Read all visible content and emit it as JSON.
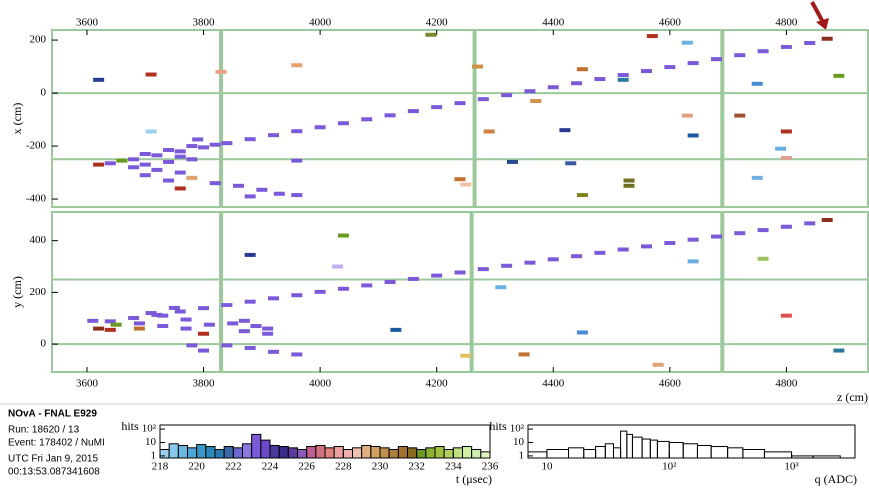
{
  "event_info": {
    "title": "NOvA - FNAL E929",
    "lines": [
      "Run:  18620 / 13",
      "Event: 178402 / NuMI",
      "UTC Fri Jan 9, 2015",
      "00:13:53.087341608"
    ]
  },
  "chart_data": [
    {
      "type": "hits",
      "ylabel": "x (cm)",
      "xlim": [
        3540,
        4940
      ],
      "ylim": [
        -430,
        238
      ],
      "xticks": [
        3600,
        3800,
        4000,
        4200,
        4400,
        4600,
        4800
      ],
      "yticks": [
        -400,
        -200,
        0,
        200
      ],
      "hlines": [
        0,
        -250
      ],
      "vlines": [
        3830,
        4265,
        4690
      ],
      "x": [
        3640,
        3680,
        3720,
        3760,
        3800,
        3840,
        3880,
        3920,
        3960,
        4000,
        4040,
        4080,
        4120,
        4160,
        4200,
        4240,
        4280,
        4320,
        4360,
        4400,
        4440,
        4480,
        4520,
        4560,
        4600,
        4640,
        4680,
        4720,
        4760,
        4800,
        4840,
        3620,
        3660,
        3700,
        3720,
        3740,
        3760,
        3780,
        3700,
        3740,
        3780,
        3820,
        3860,
        3900,
        3930,
        3960,
        3880,
        3760,
        3700,
        3740,
        3780,
        3820,
        3790,
        3760,
        3680,
        3960,
        3620,
        3710,
        3710,
        3830,
        3960,
        4190,
        4240,
        4250,
        4270,
        4290,
        4330,
        4370,
        4420,
        4430,
        4450,
        4450,
        4520,
        4530,
        4530,
        4570,
        4630,
        4630,
        4640,
        4720,
        4750,
        4750,
        4790,
        4800,
        4800,
        4890,
        4870
      ],
      "values": [
        -265,
        -250,
        -235,
        -220,
        -205,
        -189,
        -174,
        -159,
        -144,
        -129,
        -114,
        -99,
        -84,
        -68,
        -53,
        -38,
        -23,
        -8,
        7,
        22,
        37,
        53,
        68,
        83,
        98,
        113,
        128,
        143,
        158,
        174,
        189,
        -270,
        -255,
        -270,
        -290,
        -260,
        -300,
        -250,
        -310,
        -330,
        -320,
        -340,
        -350,
        -365,
        -380,
        -385,
        -390,
        -360,
        -230,
        -215,
        -200,
        -195,
        -175,
        -240,
        -280,
        -255,
        50,
        70,
        -145,
        80,
        105,
        220,
        -325,
        -345,
        100,
        -145,
        -260,
        -30,
        -140,
        -265,
        90,
        -385,
        50,
        -330,
        -350,
        215,
        190,
        -85,
        -160,
        -85,
        35,
        -320,
        -210,
        -145,
        -245,
        65,
        205
      ],
      "colors": [
        "#7a5ad8",
        "#7a5ad8",
        "#7a5ad8",
        "#7a5ad8",
        "#7a5ad8",
        "#7a5ad8",
        "#7a5ad8",
        "#7a5ad8",
        "#7a5ad8",
        "#7a5ad8",
        "#7a5ad8",
        "#7a5ad8",
        "#7a5ad8",
        "#7a5ad8",
        "#7a5ad8",
        "#7a5ad8",
        "#7a5ad8",
        "#7a5ad8",
        "#7a5ad8",
        "#7a5ad8",
        "#7a5ad8",
        "#7a5ad8",
        "#7a5ad8",
        "#7a5ad8",
        "#7a5ad8",
        "#7a5ad8",
        "#7a5ad8",
        "#7a5ad8",
        "#7a5ad8",
        "#7a5ad8",
        "#7a5ad8",
        "#b03020",
        "#6a9a20",
        "#7a5ad8",
        "#7a5ad8",
        "#7a5ad8",
        "#7a5ad8",
        "#7a5ad8",
        "#7a5ad8",
        "#7a5ad8",
        "#e0a070",
        "#7a5ad8",
        "#7a5ad8",
        "#7a5ad8",
        "#7a5ad8",
        "#7a5ad8",
        "#7a5ad8",
        "#b03020",
        "#7a5ad8",
        "#7a5ad8",
        "#7a5ad8",
        "#7a5ad8",
        "#7a5ad8",
        "#7a5ad8",
        "#7a5ad8",
        "#7a5ad8",
        "#2a3a8f",
        "#b03020",
        "#9ad0f0",
        "#e8a080",
        "#e8a070",
        "#7a8a30",
        "#c07030",
        "#f0c0a0",
        "#d09040",
        "#d08040",
        "#2a4a8f",
        "#d09050",
        "#2a3a90",
        "#3a5a9f",
        "#c07030",
        "#808020",
        "#2a7aa0",
        "#707020",
        "#707020",
        "#b03020",
        "#6ab0e0",
        "#e0a080",
        "#1a5a9f",
        "#a05030",
        "#4a8ad0",
        "#6ab0e0",
        "#6ab0e0",
        "#b03020",
        "#e0a090",
        "#6a9a20",
        "#8a3020"
      ]
    },
    {
      "type": "hits",
      "ylabel": "y (cm)",
      "xlabel": "z (cm)",
      "xlim": [
        3540,
        4940
      ],
      "ylim": [
        -108,
        511
      ],
      "xticks": [
        3600,
        3800,
        4000,
        4200,
        4400,
        4600,
        4800
      ],
      "yticks": [
        0,
        200,
        400
      ],
      "hlines": [
        0,
        250
      ],
      "vlines": [
        3830,
        4260,
        4690
      ],
      "x": [
        3640,
        3680,
        3720,
        3760,
        3800,
        3840,
        3880,
        3920,
        3960,
        4000,
        4040,
        4080,
        4120,
        4160,
        4200,
        4240,
        4280,
        4320,
        4360,
        4400,
        4440,
        4480,
        4520,
        4560,
        4600,
        4640,
        4680,
        4720,
        4760,
        4800,
        4840,
        3610,
        3650,
        3690,
        3730,
        3770,
        3810,
        3850,
        3870,
        3890,
        3910,
        3870,
        3910,
        3770,
        3750,
        3710,
        3730,
        3690,
        3800,
        3840,
        3880,
        3920,
        3960,
        3780,
        3800,
        3880,
        4040,
        4030,
        4130,
        4250,
        4310,
        4350,
        4450,
        4580,
        4640,
        4760,
        4800,
        4890,
        4870,
        3640,
        3620
      ],
      "values": [
        88,
        101,
        113,
        126,
        139,
        151,
        164,
        177,
        189,
        202,
        214,
        227,
        240,
        252,
        265,
        277,
        290,
        303,
        315,
        328,
        340,
        353,
        366,
        378,
        391,
        404,
        416,
        429,
        441,
        454,
        467,
        90,
        75,
        80,
        70,
        60,
        75,
        80,
        90,
        70,
        60,
        50,
        40,
        95,
        140,
        120,
        110,
        60,
        40,
        -5,
        -15,
        -30,
        -40,
        -5,
        -25,
        345,
        420,
        300,
        55,
        -45,
        220,
        -40,
        45,
        -80,
        320,
        330,
        110,
        -25,
        480,
        55,
        60
      ],
      "colors": [
        "#7a5ad8",
        "#7a5ad8",
        "#7a5ad8",
        "#7a5ad8",
        "#7a5ad8",
        "#7a5ad8",
        "#7a5ad8",
        "#7a5ad8",
        "#7a5ad8",
        "#7a5ad8",
        "#7a5ad8",
        "#7a5ad8",
        "#7a5ad8",
        "#7a5ad8",
        "#7a5ad8",
        "#7a5ad8",
        "#7a5ad8",
        "#7a5ad8",
        "#7a5ad8",
        "#7a5ad8",
        "#7a5ad8",
        "#7a5ad8",
        "#7a5ad8",
        "#7a5ad8",
        "#7a5ad8",
        "#7a5ad8",
        "#7a5ad8",
        "#7a5ad8",
        "#7a5ad8",
        "#7a5ad8",
        "#7a5ad8",
        "#7a5ad8",
        "#6a9a20",
        "#7a5ad8",
        "#7a5ad8",
        "#7a5ad8",
        "#7a5ad8",
        "#7a5ad8",
        "#7a5ad8",
        "#7a5ad8",
        "#7a5ad8",
        "#7a5ad8",
        "#7a5ad8",
        "#7a5ad8",
        "#7a5ad8",
        "#7a5ad8",
        "#7a5ad8",
        "#c07030",
        "#b03020",
        "#7a5ad8",
        "#7a5ad8",
        "#7a5ad8",
        "#7a5ad8",
        "#7a5ad8",
        "#7a5ad8",
        "#2a3a8f",
        "#6a9a20",
        "#c0b0f0",
        "#1a5a9f",
        "#e0c060",
        "#6ab0e0",
        "#c07030",
        "#4a8ad0",
        "#e0a070",
        "#6ab0e0",
        "#a0c060",
        "#e05050",
        "#2a7aa0",
        "#8a3020",
        "#b03020",
        "#8a3020"
      ]
    },
    {
      "type": "histogram",
      "ylabel": "hits",
      "xlabel": "t (μsec)",
      "log_y": true,
      "xlim": [
        218,
        236
      ],
      "ylim": [
        0.7,
        200
      ],
      "xticks": [
        218,
        220,
        222,
        224,
        226,
        228,
        230,
        232,
        234,
        236
      ],
      "yticks": [
        1,
        10,
        {
          "value": 100,
          "label": "10²"
        }
      ],
      "bins": [
        218,
        218.5,
        219,
        219.5,
        220,
        220.5,
        221,
        221.5,
        222,
        222.5,
        223,
        223.5,
        224,
        224.5,
        225,
        225.5,
        226,
        226.5,
        227,
        227.5,
        228,
        228.5,
        229,
        229.5,
        230,
        230.5,
        231,
        231.5,
        232,
        232.5,
        233,
        233.5,
        234,
        234.5,
        235,
        235.5,
        236
      ],
      "counts": [
        3,
        8,
        6,
        4,
        7,
        5,
        3,
        5,
        4,
        8,
        40,
        15,
        6,
        5,
        4,
        3,
        5,
        6,
        4,
        5,
        3,
        4,
        6,
        5,
        4,
        3,
        5,
        4,
        3,
        4,
        5,
        3,
        4,
        5,
        3,
        2
      ],
      "colors": [
        "#9ad0f0",
        "#8ac8ec",
        "#6ab8e0",
        "#4aa8d8",
        "#3a98c8",
        "#2a88b8",
        "#2a78b0",
        "#3a68a8",
        "#6a6ad0",
        "#8a7ae0",
        "#7a5ad8",
        "#6a4ac8",
        "#4a3a9a",
        "#3a2a8a",
        "#5a3a9a",
        "#8a5aba",
        "#c06090",
        "#d07080",
        "#e08080",
        "#f0a0a0",
        "#f0b0b0",
        "#f0c0b0",
        "#e0b080",
        "#d0a060",
        "#c09050",
        "#b08040",
        "#a07030",
        "#8a6a20",
        "#6a9a20",
        "#8ab030",
        "#a0c040",
        "#b0d060",
        "#c0e080",
        "#d0f0a0",
        "#d0f0b0",
        "#e0f8c0"
      ]
    },
    {
      "type": "histogram",
      "xlabel": "q (ADC)",
      "log_x": true,
      "log_y": true,
      "ylabel": "hits",
      "xlim": [
        7,
        3300
      ],
      "ylim": [
        0.7,
        200
      ],
      "xticks": [
        10,
        {
          "value": 100,
          "label": "10²"
        },
        {
          "value": 1000,
          "label": "10³"
        }
      ],
      "yticks": [
        1,
        10,
        {
          "value": 100,
          "label": "10²"
        }
      ],
      "bins": [
        7,
        10,
        15,
        20,
        25,
        30,
        35,
        40,
        45,
        50,
        60,
        70,
        80,
        100,
        130,
        170,
        220,
        300,
        400,
        600,
        1000,
        1500,
        2500
      ],
      "counts": [
        2,
        3,
        4,
        3,
        5,
        8,
        4,
        70,
        40,
        25,
        18,
        15,
        12,
        10,
        8,
        6,
        5,
        4,
        3,
        2,
        1,
        1
      ]
    }
  ]
}
